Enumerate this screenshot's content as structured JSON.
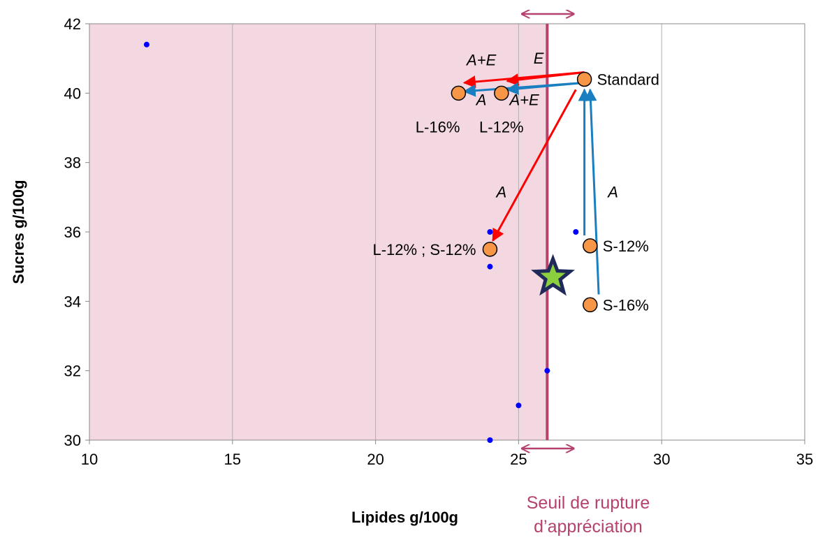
{
  "chart_data": {
    "type": "scatter",
    "title": "",
    "xlabel": "Lipides g/100g",
    "ylabel": "Sucres g/100g",
    "xlim": [
      10,
      35
    ],
    "ylim": [
      30,
      42
    ],
    "x_ticks": [
      10,
      15,
      20,
      25,
      30,
      35
    ],
    "y_ticks": [
      30,
      32,
      34,
      36,
      38,
      40,
      42
    ],
    "x_tick_labels": [
      "10",
      "15",
      "20",
      "25",
      "30",
      "35"
    ],
    "y_tick_labels": [
      "30",
      "32",
      "34",
      "36",
      "38",
      "40",
      "42"
    ],
    "grid": "vertical lines at x ticks",
    "legend": "none",
    "background_points": [
      {
        "x": 12,
        "y": 41.4
      },
      {
        "x": 24,
        "y": 36
      },
      {
        "x": 24,
        "y": 35
      },
      {
        "x": 24,
        "y": 30
      },
      {
        "x": 25,
        "y": 31
      },
      {
        "x": 26,
        "y": 32
      },
      {
        "x": 27,
        "y": 36
      },
      {
        "x": 27.4,
        "y": 35.6
      }
    ],
    "products": [
      {
        "label": "Standard",
        "x": 27.3,
        "y": 40.4,
        "label_side": "right"
      },
      {
        "label": "L-16%",
        "x": 22.9,
        "y": 40.0,
        "label_side": "below-left"
      },
      {
        "label": "L-12%",
        "x": 24.4,
        "y": 40.0,
        "label_side": "below"
      },
      {
        "label": "L-12% ; S-12%",
        "x": 24.0,
        "y": 35.5,
        "label_side": "left"
      },
      {
        "label": "S-12%",
        "x": 27.5,
        "y": 35.6,
        "label_side": "right"
      },
      {
        "label": "S-16%",
        "x": 27.5,
        "y": 33.9,
        "label_side": "right"
      }
    ],
    "star": {
      "x": 26.2,
      "y": 34.7
    },
    "threshold": {
      "x": 26.0,
      "label_line1": "Seuil de rupture",
      "label_line2": "d’appréciation",
      "shaded_region": [
        10,
        26
      ]
    },
    "arrows": [
      {
        "color": "#ff0000",
        "from": [
          27.3,
          40.6
        ],
        "to": [
          24.6,
          40.35
        ]
      },
      {
        "color": "#ff0000",
        "from": [
          27.3,
          40.6
        ],
        "to": [
          23.1,
          40.3
        ]
      },
      {
        "color": "#ff0000",
        "from": [
          27.0,
          40.1
        ],
        "to": [
          24.1,
          35.75
        ]
      },
      {
        "color": "#1a7fc1",
        "from": [
          27.3,
          40.3
        ],
        "to": [
          23.1,
          40.05
        ]
      },
      {
        "color": "#1a7fc1",
        "from": [
          27.3,
          40.3
        ],
        "to": [
          24.6,
          40.1
        ]
      },
      {
        "color": "#1a7fc1",
        "from": [
          27.3,
          35.9
        ],
        "to": [
          27.3,
          40.1
        ]
      },
      {
        "color": "#1a7fc1",
        "from": [
          27.8,
          34.2
        ],
        "to": [
          27.5,
          40.1
        ]
      }
    ],
    "annotations": [
      {
        "text": "A+E",
        "x": 23.7,
        "y": 40.8
      },
      {
        "text": "E",
        "x": 25.7,
        "y": 40.85
      },
      {
        "text": "A",
        "x": 23.7,
        "y": 39.65
      },
      {
        "text": "A+E",
        "x": 25.2,
        "y": 39.65
      },
      {
        "text": "A",
        "x": 24.4,
        "y": 37.0
      },
      {
        "text": "A",
        "x": 28.3,
        "y": 37.0
      }
    ],
    "colors": {
      "shaded": "#f3d7e1",
      "threshold_line": "#b5416e",
      "threshold_label": "#b5416e",
      "background_point": "#0000ff",
      "product_fill": "#f79646",
      "star_fill": "#8ccf3e",
      "star_stroke": "#1f2a5a"
    }
  }
}
